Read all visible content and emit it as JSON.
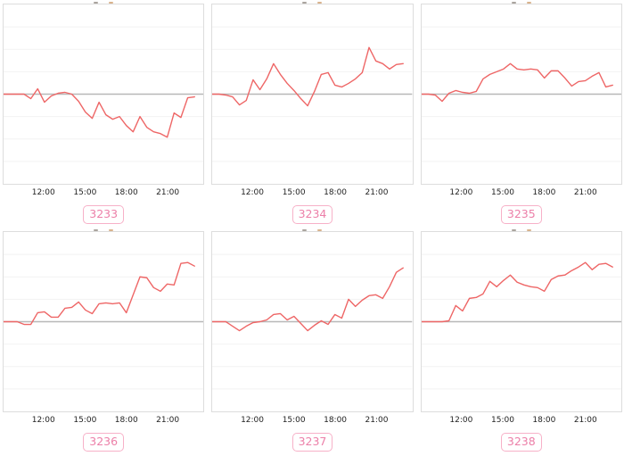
{
  "colors": {
    "line": "#ee6666",
    "zero_line": "#b8b8b8",
    "grid_line": "#f2f2f2",
    "panel_border": "#dddddd",
    "badge_border": "#f7b1c8",
    "badge_text": "#ec7fa8",
    "tick_text": "#222222"
  },
  "chart_data": [
    {
      "type": "line",
      "label": "3233",
      "x_labels": [
        "12:00",
        "15:00",
        "18:00",
        "21:00"
      ],
      "x_start": "09:00",
      "x_end": "23:00",
      "interval_minutes": 30,
      "baseline": 0,
      "ylim": [
        -100,
        100
      ],
      "grid": true,
      "legend": "none",
      "values": [
        0,
        0,
        0,
        0,
        -5,
        6,
        -9,
        -2,
        1,
        2,
        0,
        -8,
        -20,
        -27,
        -9,
        -23,
        -28,
        -25,
        -35,
        -42,
        -25,
        -37,
        -42,
        -44,
        -48,
        -21,
        -26,
        -4,
        -3
      ]
    },
    {
      "type": "line",
      "label": "3234",
      "x_labels": [
        "12:00",
        "15:00",
        "18:00",
        "21:00"
      ],
      "x_start": "09:00",
      "x_end": "23:00",
      "interval_minutes": 30,
      "baseline": 0,
      "ylim": [
        -100,
        100
      ],
      "grid": true,
      "legend": "none",
      "values": [
        0,
        0,
        -1,
        -3,
        -12,
        -7,
        16,
        5,
        17,
        34,
        22,
        12,
        4,
        -5,
        -13,
        3,
        22,
        24,
        10,
        8,
        12,
        17,
        24,
        52,
        37,
        34,
        28,
        33,
        34
      ]
    },
    {
      "type": "line",
      "label": "3235",
      "x_labels": [
        "12:00",
        "15:00",
        "18:00",
        "21:00"
      ],
      "x_start": "09:00",
      "x_end": "23:00",
      "interval_minutes": 30,
      "baseline": 0,
      "ylim": [
        -100,
        100
      ],
      "grid": true,
      "legend": "none",
      "values": [
        0,
        0,
        -1,
        -8,
        1,
        4,
        2,
        1,
        3,
        17,
        22,
        25,
        28,
        34,
        28,
        27,
        28,
        27,
        18,
        26,
        26,
        18,
        9,
        14,
        15,
        20,
        24,
        8,
        10
      ]
    },
    {
      "type": "line",
      "label": "3236",
      "x_labels": [
        "12:00",
        "15:00",
        "18:00",
        "21:00"
      ],
      "x_start": "09:00",
      "x_end": "23:00",
      "interval_minutes": 30,
      "baseline": 0,
      "ylim": [
        -100,
        100
      ],
      "grid": true,
      "legend": "none",
      "values": [
        0,
        0,
        0,
        -3,
        -3,
        10,
        11,
        5,
        5,
        15,
        16,
        22,
        13,
        9,
        20,
        21,
        20,
        21,
        10,
        30,
        50,
        49,
        38,
        34,
        42,
        41,
        65,
        66,
        62
      ]
    },
    {
      "type": "line",
      "label": "3237",
      "x_labels": [
        "12:00",
        "15:00",
        "18:00",
        "21:00"
      ],
      "x_start": "09:00",
      "x_end": "23:00",
      "interval_minutes": 30,
      "baseline": 0,
      "ylim": [
        -100,
        100
      ],
      "grid": true,
      "legend": "none",
      "values": [
        0,
        0,
        0,
        -5,
        -10,
        -5,
        -1,
        0,
        2,
        8,
        9,
        2,
        6,
        -2,
        -10,
        -4,
        1,
        -3,
        8,
        4,
        25,
        17,
        24,
        29,
        30,
        26,
        39,
        55,
        60
      ]
    },
    {
      "type": "line",
      "label": "3238",
      "x_labels": [
        "12:00",
        "15:00",
        "18:00",
        "21:00"
      ],
      "x_start": "09:00",
      "x_end": "23:00",
      "interval_minutes": 30,
      "baseline": 0,
      "ylim": [
        -100,
        100
      ],
      "grid": true,
      "legend": "none",
      "values": [
        0,
        0,
        0,
        0,
        1,
        18,
        12,
        26,
        27,
        31,
        45,
        39,
        46,
        52,
        44,
        41,
        39,
        38,
        34,
        47,
        51,
        52,
        57,
        61,
        66,
        58,
        64,
        65,
        61
      ]
    }
  ]
}
